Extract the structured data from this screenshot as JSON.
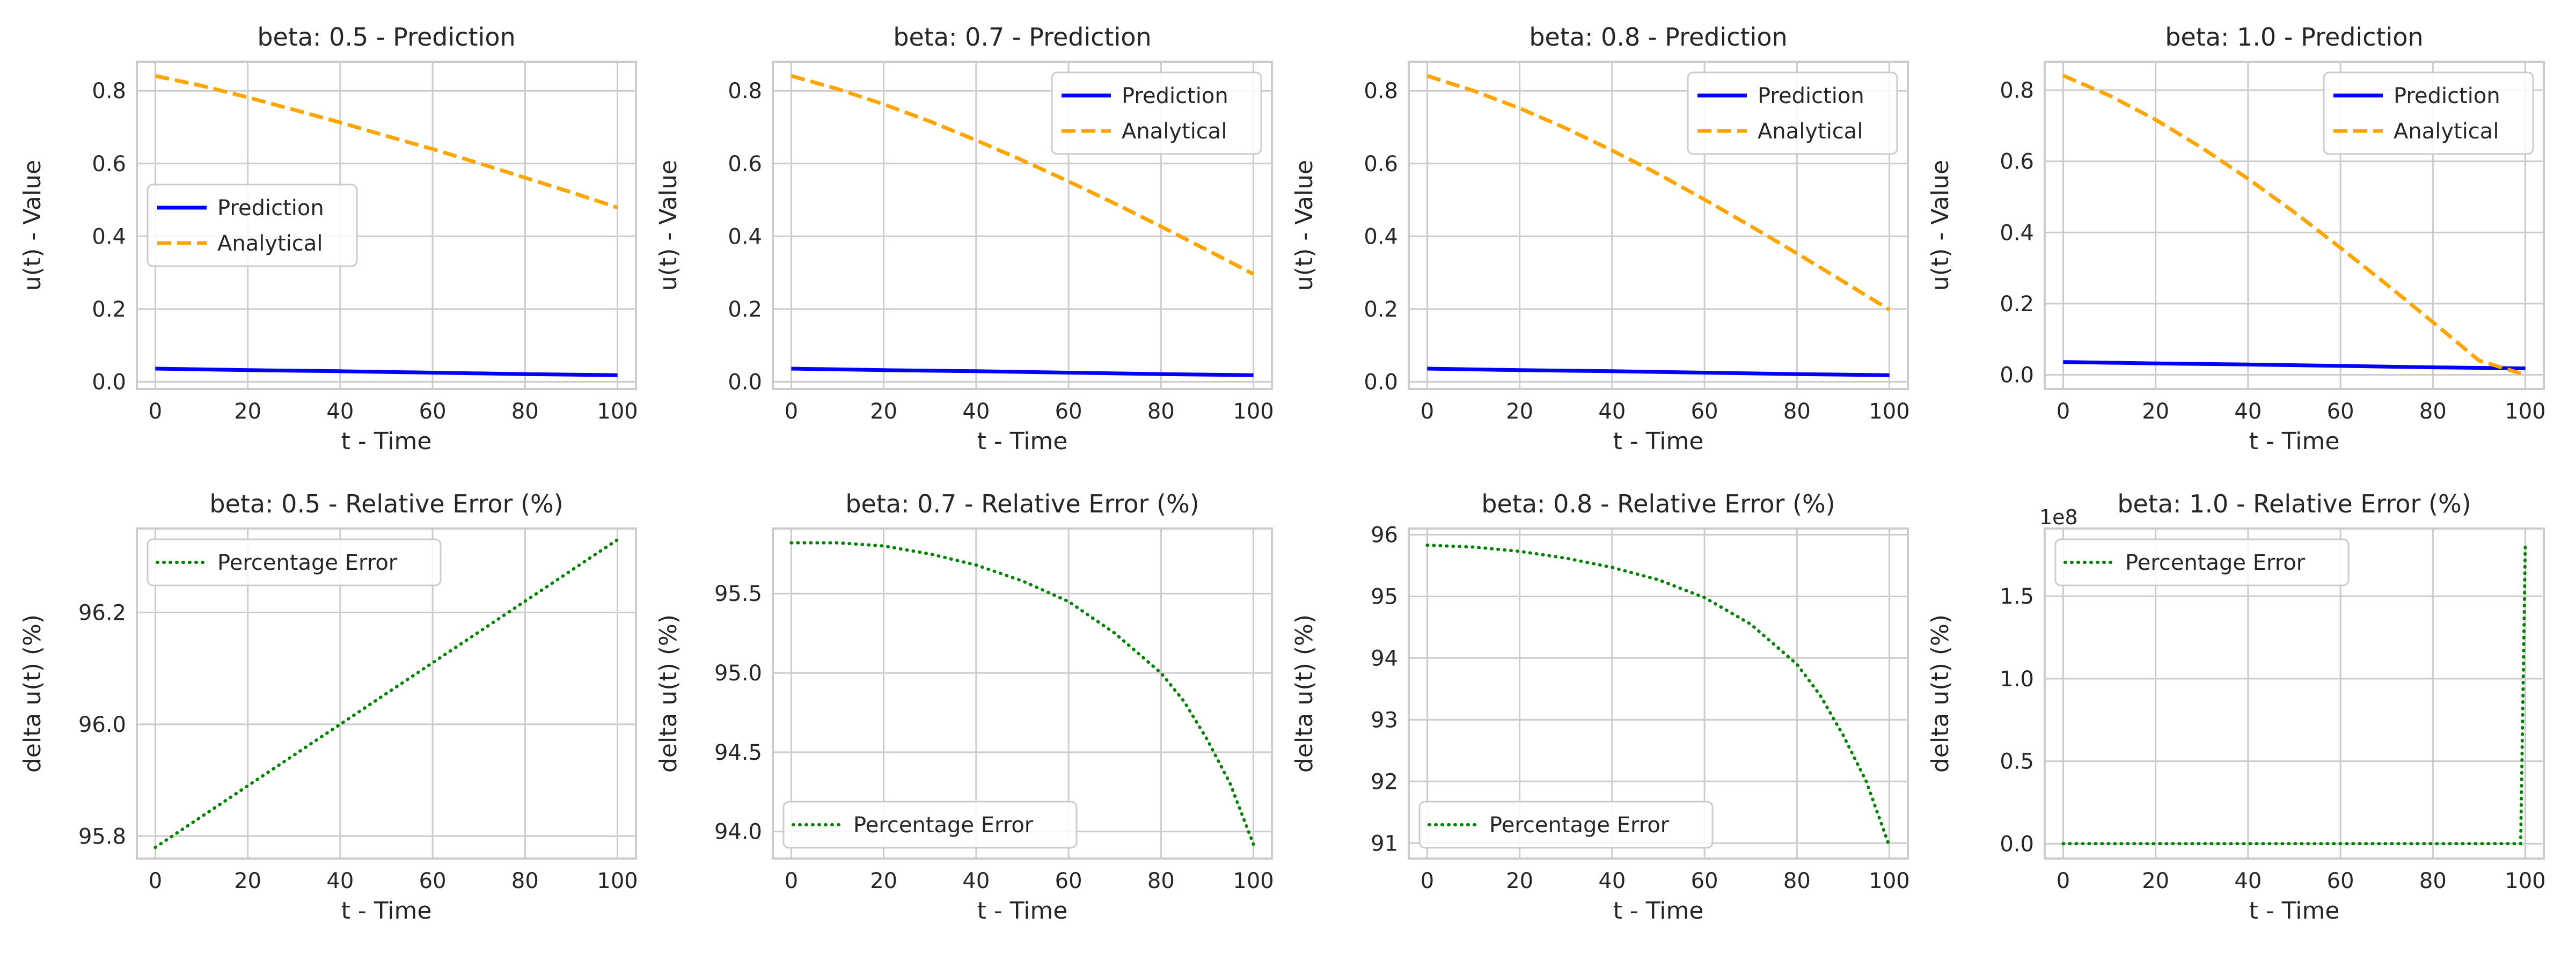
{
  "figure": {
    "background": "#ffffff",
    "grid_color": "#cccccc",
    "spine_color": "#cccccc",
    "text_color": "#262626"
  },
  "colors": {
    "prediction": "#0000ff",
    "analytical": "#ffa500",
    "error": "#008000"
  },
  "chart_data": [
    {
      "type": "line",
      "title": "beta: 0.5 - Prediction",
      "xlabel": "t - Time",
      "ylabel": "u(t) - Value",
      "xlim": [
        -4,
        104
      ],
      "ylim": [
        -0.02,
        0.88
      ],
      "xticks": [
        0,
        20,
        40,
        60,
        80,
        100
      ],
      "xtick_labels": [
        "0",
        "20",
        "40",
        "60",
        "80",
        "100"
      ],
      "yticks": [
        0.0,
        0.2,
        0.4,
        0.6,
        0.8
      ],
      "ytick_labels": [
        "0.0",
        "0.2",
        "0.4",
        "0.6",
        "0.8"
      ],
      "grid": true,
      "legend": "center-left",
      "series": [
        {
          "name": "Prediction",
          "style": "solid",
          "color": "#0000ff",
          "x": [
            0,
            20,
            40,
            60,
            80,
            100
          ],
          "y": [
            0.036,
            0.032,
            0.029,
            0.025,
            0.021,
            0.018
          ]
        },
        {
          "name": "Analytical",
          "style": "dashed",
          "color": "#ffa500",
          "x": [
            0,
            10,
            20,
            30,
            40,
            50,
            60,
            70,
            80,
            90,
            100
          ],
          "y": [
            0.841,
            0.814,
            0.782,
            0.748,
            0.713,
            0.676,
            0.64,
            0.601,
            0.561,
            0.521,
            0.479
          ]
        }
      ]
    },
    {
      "type": "line",
      "title": "beta: 0.7 - Prediction",
      "xlabel": "t - Time",
      "ylabel": "u(t) - Value",
      "xlim": [
        -4,
        104
      ],
      "ylim": [
        -0.02,
        0.88
      ],
      "xticks": [
        0,
        20,
        40,
        60,
        80,
        100
      ],
      "xtick_labels": [
        "0",
        "20",
        "40",
        "60",
        "80",
        "100"
      ],
      "yticks": [
        0.0,
        0.2,
        0.4,
        0.6,
        0.8
      ],
      "ytick_labels": [
        "0.0",
        "0.2",
        "0.4",
        "0.6",
        "0.8"
      ],
      "grid": true,
      "legend": "top-right",
      "series": [
        {
          "name": "Prediction",
          "style": "solid",
          "color": "#0000ff",
          "x": [
            0,
            20,
            40,
            60,
            80,
            100
          ],
          "y": [
            0.036,
            0.032,
            0.029,
            0.025,
            0.021,
            0.018
          ]
        },
        {
          "name": "Analytical",
          "style": "dashed",
          "color": "#ffa500",
          "x": [
            0,
            10,
            20,
            30,
            40,
            50,
            60,
            70,
            80,
            90,
            100
          ],
          "y": [
            0.841,
            0.805,
            0.763,
            0.716,
            0.664,
            0.609,
            0.551,
            0.49,
            0.427,
            0.362,
            0.296
          ]
        }
      ]
    },
    {
      "type": "line",
      "title": "beta: 0.8 - Prediction",
      "xlabel": "t - Time",
      "ylabel": "u(t) - Value",
      "xlim": [
        -4,
        104
      ],
      "ylim": [
        -0.02,
        0.88
      ],
      "xticks": [
        0,
        20,
        40,
        60,
        80,
        100
      ],
      "xtick_labels": [
        "0",
        "20",
        "40",
        "60",
        "80",
        "100"
      ],
      "yticks": [
        0.0,
        0.2,
        0.4,
        0.6,
        0.8
      ],
      "ytick_labels": [
        "0.0",
        "0.2",
        "0.4",
        "0.6",
        "0.8"
      ],
      "grid": true,
      "legend": "top-right",
      "series": [
        {
          "name": "Prediction",
          "style": "solid",
          "color": "#0000ff",
          "x": [
            0,
            20,
            40,
            60,
            80,
            100
          ],
          "y": [
            0.036,
            0.032,
            0.029,
            0.025,
            0.021,
            0.018
          ]
        },
        {
          "name": "Analytical",
          "style": "dashed",
          "color": "#ffa500",
          "x": [
            0,
            10,
            20,
            30,
            40,
            50,
            60,
            70,
            80,
            90,
            100
          ],
          "y": [
            0.841,
            0.8,
            0.752,
            0.697,
            0.636,
            0.571,
            0.501,
            0.428,
            0.353,
            0.276,
            0.198
          ]
        }
      ]
    },
    {
      "type": "line",
      "title": "beta: 1.0 - Prediction",
      "xlabel": "t - Time",
      "ylabel": "u(t) - Value",
      "xlim": [
        -4,
        104
      ],
      "ylim": [
        -0.04,
        0.88
      ],
      "xticks": [
        0,
        20,
        40,
        60,
        80,
        100
      ],
      "xtick_labels": [
        "0",
        "20",
        "40",
        "60",
        "80",
        "100"
      ],
      "yticks": [
        0.0,
        0.2,
        0.4,
        0.6,
        0.8
      ],
      "ytick_labels": [
        "0.0",
        "0.2",
        "0.4",
        "0.6",
        "0.8"
      ],
      "grid": true,
      "legend": "top-right",
      "series": [
        {
          "name": "Prediction",
          "style": "solid",
          "color": "#0000ff",
          "x": [
            0,
            20,
            40,
            60,
            80,
            100
          ],
          "y": [
            0.036,
            0.032,
            0.029,
            0.025,
            0.021,
            0.018
          ]
        },
        {
          "name": "Analytical",
          "style": "dashed",
          "color": "#ffa500",
          "x": [
            0,
            10,
            20,
            30,
            40,
            50,
            60,
            70,
            80,
            90,
            100
          ],
          "y": [
            0.841,
            0.785,
            0.717,
            0.638,
            0.551,
            0.457,
            0.357,
            0.254,
            0.148,
            0.04,
            0.0
          ]
        }
      ]
    },
    {
      "type": "line",
      "title": "beta: 0.5 - Relative Error (%)",
      "xlabel": "t - Time",
      "ylabel": "delta u(t) (%)",
      "xlim": [
        -4,
        104
      ],
      "ylim": [
        95.76,
        96.35
      ],
      "xticks": [
        0,
        20,
        40,
        60,
        80,
        100
      ],
      "xtick_labels": [
        "0",
        "20",
        "40",
        "60",
        "80",
        "100"
      ],
      "yticks": [
        95.8,
        96.0,
        96.2
      ],
      "ytick_labels": [
        "95.8",
        "96.0",
        "96.2"
      ],
      "grid": true,
      "legend": "top-left",
      "series": [
        {
          "name": "Percentage Error",
          "style": "dotted",
          "color": "#008000",
          "x": [
            0,
            100
          ],
          "y": [
            95.78,
            96.33
          ]
        }
      ]
    },
    {
      "type": "line",
      "title": "beta: 0.7 - Relative Error (%)",
      "xlabel": "t - Time",
      "ylabel": "delta u(t) (%)",
      "xlim": [
        -4,
        104
      ],
      "ylim": [
        93.83,
        95.91
      ],
      "xticks": [
        0,
        20,
        40,
        60,
        80,
        100
      ],
      "xtick_labels": [
        "0",
        "20",
        "40",
        "60",
        "80",
        "100"
      ],
      "yticks": [
        94.0,
        94.5,
        95.0,
        95.5
      ],
      "ytick_labels": [
        "94.0",
        "94.5",
        "95.0",
        "95.5"
      ],
      "grid": true,
      "legend": "bottom-left",
      "series": [
        {
          "name": "Percentage Error",
          "style": "dotted",
          "color": "#008000",
          "x": [
            0,
            10,
            20,
            30,
            40,
            50,
            60,
            70,
            80,
            85,
            90,
            95,
            100
          ],
          "y": [
            95.82,
            95.82,
            95.8,
            95.75,
            95.68,
            95.58,
            95.45,
            95.25,
            95.0,
            94.82,
            94.58,
            94.3,
            93.92
          ]
        }
      ]
    },
    {
      "type": "line",
      "title": "beta: 0.8 - Relative Error (%)",
      "xlabel": "t - Time",
      "ylabel": "delta u(t) (%)",
      "xlim": [
        -4,
        104
      ],
      "ylim": [
        90.75,
        96.1
      ],
      "xticks": [
        0,
        20,
        40,
        60,
        80,
        100
      ],
      "xtick_labels": [
        "0",
        "20",
        "40",
        "60",
        "80",
        "100"
      ],
      "yticks": [
        91,
        92,
        93,
        94,
        95,
        96
      ],
      "ytick_labels": [
        "91",
        "92",
        "93",
        "94",
        "95",
        "96"
      ],
      "grid": true,
      "legend": "bottom-left",
      "series": [
        {
          "name": "Percentage Error",
          "style": "dotted",
          "color": "#008000",
          "x": [
            0,
            10,
            20,
            30,
            40,
            50,
            60,
            70,
            80,
            85,
            90,
            95,
            100
          ],
          "y": [
            95.83,
            95.8,
            95.73,
            95.62,
            95.47,
            95.27,
            94.98,
            94.55,
            93.9,
            93.4,
            92.75,
            92.0,
            90.95
          ]
        }
      ]
    },
    {
      "type": "line",
      "title": "beta: 1.0 - Relative Error (%)",
      "xlabel": "t - Time",
      "ylabel": "delta u(t) (%)",
      "multiplier_label": "1e8",
      "xlim": [
        -4,
        104
      ],
      "ylim": [
        -0.09,
        1.91
      ],
      "xticks": [
        0,
        20,
        40,
        60,
        80,
        100
      ],
      "xtick_labels": [
        "0",
        "20",
        "40",
        "60",
        "80",
        "100"
      ],
      "yticks": [
        0.0,
        0.5,
        1.0,
        1.5
      ],
      "ytick_labels": [
        "0.0",
        "0.5",
        "1.0",
        "1.5"
      ],
      "grid": true,
      "legend": "top-left",
      "series": [
        {
          "name": "Percentage Error",
          "style": "dotted",
          "color": "#008000",
          "x": [
            0,
            20,
            40,
            60,
            80,
            99,
            100
          ],
          "y": [
            0.0,
            0.0,
            0.0,
            0.0,
            0.0,
            0.0,
            1.83
          ]
        }
      ]
    }
  ]
}
